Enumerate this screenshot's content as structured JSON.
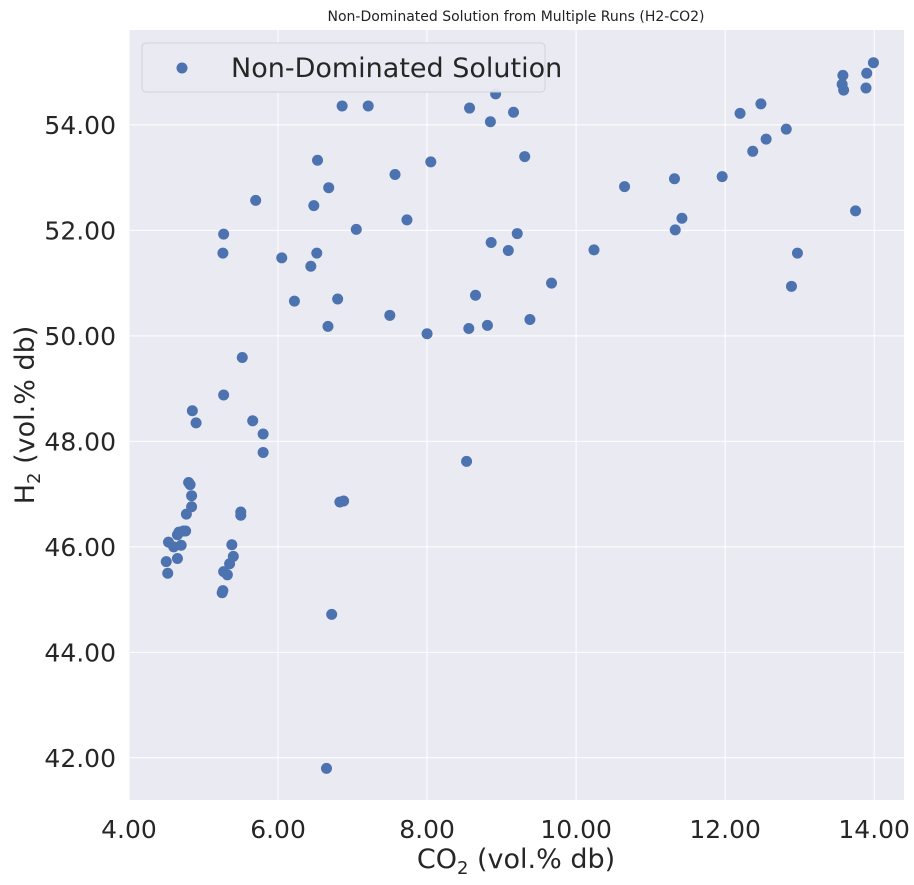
{
  "chart_data": {
    "type": "scatter",
    "title": "Non-Dominated Solution from Multiple Runs (H2-CO2)",
    "xlabel": {
      "main": "CO",
      "sub": "2",
      "rest": " (vol.% db)"
    },
    "ylabel": {
      "main": "H",
      "sub": "2",
      "rest": " (vol.% db)"
    },
    "xlim": [
      4.0,
      14.4
    ],
    "ylim": [
      41.2,
      55.8
    ],
    "xticks": [
      4,
      6,
      8,
      10,
      12,
      14
    ],
    "yticks": [
      42,
      44,
      46,
      48,
      50,
      52,
      54
    ],
    "xtick_labels": [
      "4.00",
      "6.00",
      "8.00",
      "10.00",
      "12.00",
      "14.00"
    ],
    "ytick_labels": [
      "42.00",
      "44.00",
      "46.00",
      "48.00",
      "50.00",
      "52.00",
      "54.00"
    ],
    "grid": true,
    "legend_position": "top-left",
    "colors": {
      "point": "#4c72b0",
      "plot_bg": "#eaeaf2",
      "grid": "#ffffff"
    },
    "series": [
      {
        "name": "Non-Dominated Solution",
        "points": [
          [
            4.5,
            45.72
          ],
          [
            4.52,
            45.5
          ],
          [
            4.53,
            46.09
          ],
          [
            4.6,
            46.0
          ],
          [
            4.65,
            45.78
          ],
          [
            4.65,
            46.23
          ],
          [
            4.67,
            46.28
          ],
          [
            4.7,
            46.03
          ],
          [
            4.73,
            46.3
          ],
          [
            4.76,
            46.3
          ],
          [
            4.77,
            46.62
          ],
          [
            4.8,
            47.22
          ],
          [
            4.82,
            47.18
          ],
          [
            4.84,
            46.97
          ],
          [
            4.84,
            46.76
          ],
          [
            4.85,
            48.58
          ],
          [
            4.9,
            48.35
          ],
          [
            5.25,
            45.13
          ],
          [
            5.26,
            45.17
          ],
          [
            5.27,
            45.53
          ],
          [
            5.27,
            48.88
          ],
          [
            5.26,
            51.57
          ],
          [
            5.27,
            51.93
          ],
          [
            5.32,
            45.47
          ],
          [
            5.35,
            45.68
          ],
          [
            5.38,
            46.04
          ],
          [
            5.4,
            45.82
          ],
          [
            5.5,
            46.66
          ],
          [
            5.5,
            46.6
          ],
          [
            5.52,
            49.59
          ],
          [
            5.66,
            48.39
          ],
          [
            5.7,
            52.57
          ],
          [
            5.8,
            48.14
          ],
          [
            5.8,
            47.79
          ],
          [
            6.05,
            51.48
          ],
          [
            6.22,
            50.66
          ],
          [
            6.44,
            51.32
          ],
          [
            6.48,
            52.47
          ],
          [
            6.52,
            51.57
          ],
          [
            6.53,
            53.33
          ],
          [
            6.65,
            41.8
          ],
          [
            6.67,
            50.18
          ],
          [
            6.68,
            52.81
          ],
          [
            6.72,
            44.72
          ],
          [
            6.8,
            50.7
          ],
          [
            6.83,
            46.85
          ],
          [
            6.88,
            46.87
          ],
          [
            6.86,
            54.36
          ],
          [
            7.05,
            52.02
          ],
          [
            7.21,
            54.36
          ],
          [
            7.5,
            50.39
          ],
          [
            7.57,
            53.06
          ],
          [
            7.73,
            52.2
          ],
          [
            8.0,
            50.04
          ],
          [
            8.05,
            53.3
          ],
          [
            8.53,
            47.62
          ],
          [
            8.56,
            50.14
          ],
          [
            8.57,
            54.32
          ],
          [
            8.65,
            50.77
          ],
          [
            8.81,
            50.2
          ],
          [
            8.85,
            54.06
          ],
          [
            8.86,
            51.77
          ],
          [
            8.92,
            54.59
          ],
          [
            9.09,
            51.62
          ],
          [
            9.16,
            54.24
          ],
          [
            9.21,
            51.94
          ],
          [
            9.31,
            53.4
          ],
          [
            9.38,
            50.31
          ],
          [
            9.67,
            51.0
          ],
          [
            10.24,
            51.63
          ],
          [
            10.65,
            52.83
          ],
          [
            11.32,
            52.98
          ],
          [
            11.33,
            52.01
          ],
          [
            11.42,
            52.23
          ],
          [
            11.96,
            53.02
          ],
          [
            12.2,
            54.22
          ],
          [
            12.37,
            53.5
          ],
          [
            12.48,
            54.4
          ],
          [
            12.55,
            53.73
          ],
          [
            12.82,
            53.92
          ],
          [
            12.89,
            50.94
          ],
          [
            12.97,
            51.57
          ],
          [
            13.57,
            54.77
          ],
          [
            13.58,
            54.94
          ],
          [
            13.59,
            54.66
          ],
          [
            13.75,
            52.37
          ],
          [
            13.89,
            54.7
          ],
          [
            13.9,
            54.98
          ],
          [
            13.99,
            55.18
          ]
        ]
      }
    ]
  }
}
